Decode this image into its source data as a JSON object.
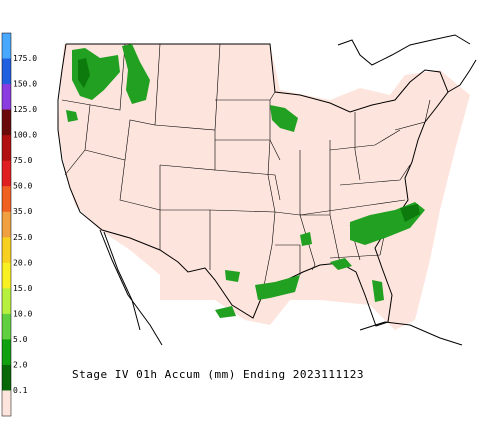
{
  "legend": {
    "labels": [
      "175.0",
      "150.0",
      "125.0",
      "100.0",
      "75.0",
      "50.0",
      "35.0",
      "25.0",
      "20.0",
      "15.0",
      "10.0",
      "5.0",
      "2.0",
      "0.1"
    ],
    "colors": [
      "#49a8ff",
      "#1f5fe0",
      "#8a3ce0",
      "#6a0a0a",
      "#b01010",
      "#e02020",
      "#f06020",
      "#f0a040",
      "#f8d020",
      "#f8f020",
      "#b8f040",
      "#60d040",
      "#10a010",
      "#086808",
      "#fde4dc"
    ]
  },
  "title": "Stage IV 01h Accum (mm) Ending 2023111123"
}
